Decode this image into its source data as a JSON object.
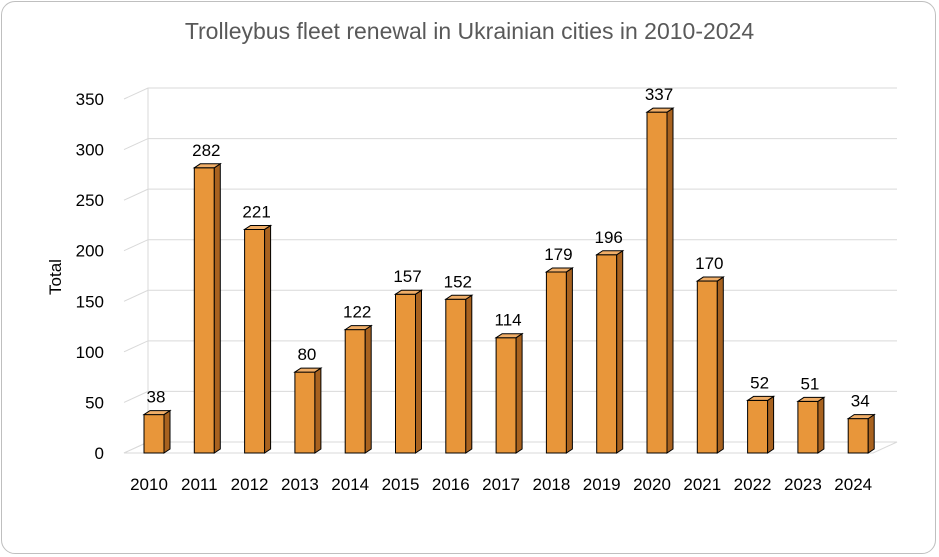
{
  "chart_data": {
    "type": "bar",
    "title": "Trolleybus fleet renewal in Ukrainian cities in 2010-2024",
    "xlabel": "",
    "ylabel": "Total",
    "categories": [
      "2010",
      "2011",
      "2012",
      "2013",
      "2014",
      "2015",
      "2016",
      "2017",
      "2018",
      "2019",
      "2020",
      "2021",
      "2022",
      "2023",
      "2024"
    ],
    "values": [
      38,
      282,
      221,
      80,
      122,
      157,
      152,
      114,
      179,
      196,
      337,
      170,
      52,
      51,
      34
    ],
    "ylim": [
      0,
      350
    ],
    "yticks": [
      0,
      50,
      100,
      150,
      200,
      250,
      300,
      350
    ],
    "grid": true,
    "legend": "none",
    "bar_color": "#E8963A",
    "bar_side_color": "#A8621F",
    "bar_top_color": "#F0AE68"
  }
}
